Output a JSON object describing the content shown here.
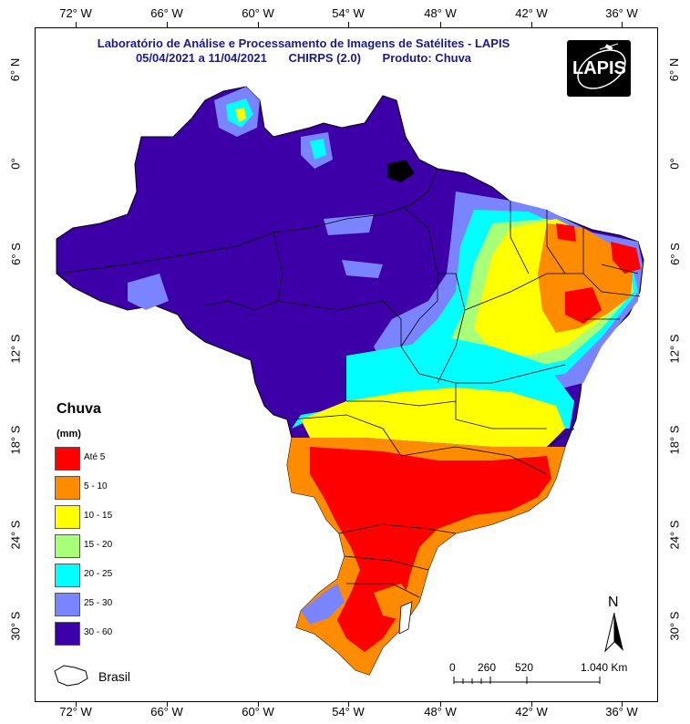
{
  "header": {
    "title": "Laboratório de Análise e Processamento de Imagens de Satélites - LAPIS",
    "period": "05/04/2021  a 11/04/2021",
    "source": "CHIRPS (2.0)",
    "product": "Produto: Chuva",
    "logo_text": "LAPIS"
  },
  "axes": {
    "longitude_labels": [
      "72° W",
      "66° W",
      "60° W",
      "54° W",
      "48° W",
      "42° W",
      "36° W"
    ],
    "latitude_labels": [
      "6° N",
      "0°",
      "6° S",
      "12° S",
      "18° S",
      "24° S",
      "30° S"
    ]
  },
  "legend": {
    "title": "Chuva",
    "unit": "(mm)",
    "items": [
      {
        "label": "Até 5",
        "color": "#ff0000"
      },
      {
        "label": "5 - 10",
        "color": "#ff8c00"
      },
      {
        "label": "10 - 15",
        "color": "#ffff00"
      },
      {
        "label": "15 - 20",
        "color": "#a8ff78"
      },
      {
        "label": "20 - 25",
        "color": "#00ffff"
      },
      {
        "label": "25 - 30",
        "color": "#7b84ff"
      },
      {
        "label": "30 - 60",
        "color": "#3d00a8"
      }
    ],
    "boundary_label": "Brasil"
  },
  "north_arrow": {
    "label": "N"
  },
  "scale_bar": {
    "labels": [
      "0",
      "260",
      "520",
      "1.040 Km"
    ]
  },
  "map_colors": {
    "wet": "#3d00a8",
    "mid_wet": "#7b84ff",
    "cyan": "#00ffff",
    "green": "#a8ff78",
    "yellow": "#ffff00",
    "orange": "#ff8c00",
    "red": "#ff0000",
    "water": "#000000"
  }
}
